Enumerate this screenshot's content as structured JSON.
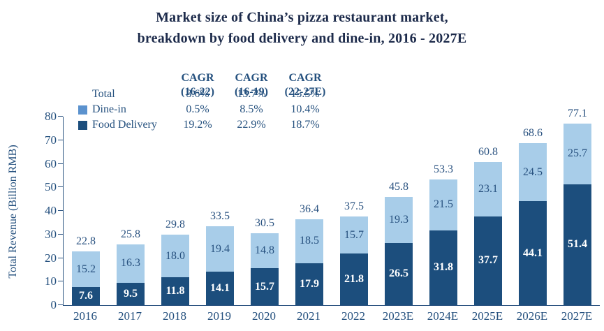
{
  "title": {
    "line1": "Market size of China’s pizza restaurant market,",
    "line2": "breakdown by food delivery and dine-in, 2016 - 2027E"
  },
  "colors": {
    "food_delivery_bar": "#1c4e7d",
    "dine_in_bar": "#a8cde9",
    "legend_dine_in_swatch": "#5b92ce",
    "legend_food_delivery_swatch": "#1c4e7d",
    "navy_text": "#24507e",
    "title_text": "#1d2b4b",
    "label_on_dark": "#ffffff"
  },
  "cagr_table": {
    "columns": [
      "CAGR\n(16-22)",
      "CAGR\n(16-19)",
      "CAGR\n(22-27E)"
    ],
    "rows": [
      {
        "label": "Total",
        "swatch": null,
        "values": [
          "8.6%",
          "13.7%",
          "15.5%"
        ]
      },
      {
        "label": "Dine-in",
        "swatch": "#5b92ce",
        "values": [
          "0.5%",
          "8.5%",
          "10.4%"
        ]
      },
      {
        "label": "Food Delivery",
        "swatch": "#1c4e7d",
        "values": [
          "19.2%",
          "22.9%",
          "18.7%"
        ]
      }
    ]
  },
  "chart_data": {
    "type": "bar",
    "stacked": true,
    "title": "Market size of China’s pizza restaurant market, breakdown by food delivery and dine-in, 2016 - 2027E",
    "categories": [
      "2016",
      "2017",
      "2018",
      "2019",
      "2020",
      "2021",
      "2022",
      "2023E",
      "2024E",
      "2025E",
      "2026E",
      "2027E"
    ],
    "series": [
      {
        "name": "Food Delivery",
        "color": "#1c4e7d",
        "values": [
          7.6,
          9.5,
          11.8,
          14.1,
          15.7,
          17.9,
          21.8,
          26.5,
          31.8,
          37.7,
          44.1,
          51.4
        ]
      },
      {
        "name": "Dine-in",
        "color": "#a8cde9",
        "values": [
          15.2,
          16.3,
          18.0,
          19.4,
          14.8,
          18.5,
          15.7,
          19.3,
          21.5,
          23.1,
          24.5,
          25.7
        ]
      }
    ],
    "totals": [
      22.8,
      25.8,
      29.8,
      33.5,
      30.5,
      36.4,
      37.5,
      45.8,
      53.3,
      60.8,
      68.6,
      77.1
    ],
    "xlabel": "",
    "ylabel": "Total Revenue (Billion RMB)",
    "ylim": [
      0,
      80
    ],
    "ytick_step": 10,
    "grid": false,
    "legend_position": "top-left"
  }
}
